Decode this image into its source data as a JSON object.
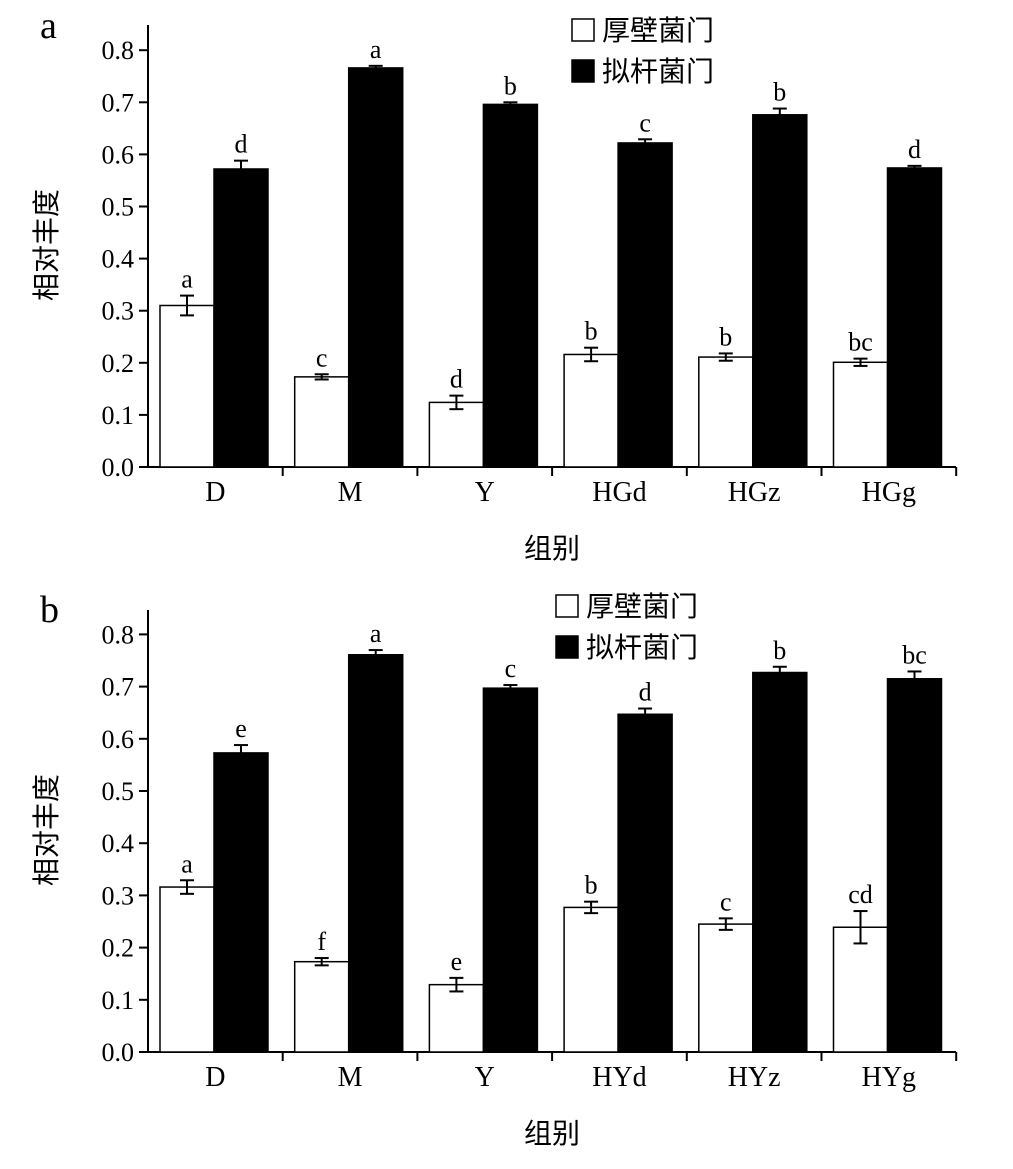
{
  "chart_data": [
    {
      "type": "bar",
      "panel_label": "a",
      "categories": [
        "D",
        "M",
        "Y",
        "HGd",
        "HGz",
        "HGg"
      ],
      "xlabel": "组别",
      "ylabel": "相对丰度",
      "ylim": [
        0,
        0.85
      ],
      "yticks": [
        "0.0",
        "0.1",
        "0.2",
        "0.3",
        "0.4",
        "0.5",
        "0.6",
        "0.7",
        "0.8"
      ],
      "legend_position": "top-center",
      "series": [
        {
          "name": "厚壁菌门",
          "fill": "#ffffff",
          "values": [
            0.31,
            0.173,
            0.124,
            0.216,
            0.211,
            0.201
          ],
          "errors": [
            0.019,
            0.005,
            0.013,
            0.013,
            0.007,
            0.007
          ],
          "letters": [
            "a",
            "c",
            "d",
            "b",
            "b",
            "bc"
          ]
        },
        {
          "name": "拟杆菌门",
          "fill": "#000000",
          "values": [
            0.572,
            0.766,
            0.696,
            0.622,
            0.676,
            0.574
          ],
          "errors": [
            0.016,
            0.004,
            0.004,
            0.007,
            0.012,
            0.004
          ],
          "letters": [
            "d",
            "a",
            "b",
            "c",
            "b",
            "d"
          ]
        }
      ]
    },
    {
      "type": "bar",
      "panel_label": "b",
      "categories": [
        "D",
        "M",
        "Y",
        "HYd",
        "HYz",
        "HYg"
      ],
      "xlabel": "组别",
      "ylabel": "相对丰度",
      "ylim": [
        0,
        0.85
      ],
      "yticks": [
        "0.0",
        "0.1",
        "0.2",
        "0.3",
        "0.4",
        "0.5",
        "0.6",
        "0.7",
        "0.8"
      ],
      "legend_position": "top-center",
      "series": [
        {
          "name": "厚壁菌门",
          "fill": "#ffffff",
          "values": [
            0.316,
            0.173,
            0.129,
            0.277,
            0.245,
            0.239
          ],
          "errors": [
            0.013,
            0.007,
            0.013,
            0.011,
            0.011,
            0.031
          ],
          "letters": [
            "a",
            "f",
            "e",
            "b",
            "c",
            "cd"
          ]
        },
        {
          "name": "拟杆菌门",
          "fill": "#000000",
          "values": [
            0.573,
            0.761,
            0.697,
            0.647,
            0.727,
            0.715
          ],
          "errors": [
            0.015,
            0.009,
            0.006,
            0.011,
            0.011,
            0.014
          ],
          "letters": [
            "e",
            "a",
            "c",
            "d",
            "b",
            "bc"
          ]
        }
      ]
    }
  ]
}
